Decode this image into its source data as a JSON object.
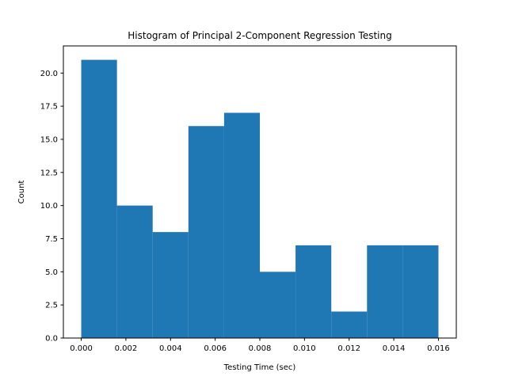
{
  "chart_data": {
    "type": "bar",
    "title": "Histogram of Principal 2-Component Regression Testing",
    "xlabel": "Testing Time (sec)",
    "ylabel": "Count",
    "bin_edges": [
      0.0,
      0.0016,
      0.0032,
      0.0048,
      0.0064,
      0.008,
      0.0096,
      0.0112,
      0.0128,
      0.0144,
      0.016
    ],
    "values": [
      21,
      10,
      8,
      16,
      17,
      5,
      7,
      2,
      7,
      7
    ],
    "xlim": [
      -0.0008,
      0.0168
    ],
    "ylim": [
      0,
      22.05
    ],
    "xticks": [
      0.0,
      0.002,
      0.004,
      0.006,
      0.008,
      0.01,
      0.012,
      0.014,
      0.016
    ],
    "xtick_labels": [
      "0.000",
      "0.002",
      "0.004",
      "0.006",
      "0.008",
      "0.010",
      "0.012",
      "0.014",
      "0.016"
    ],
    "yticks": [
      0,
      2.5,
      5,
      7.5,
      10,
      12.5,
      15,
      17.5,
      20
    ],
    "ytick_labels": [
      "0.0",
      "2.5",
      "5.0",
      "7.5",
      "10.0",
      "12.5",
      "15.0",
      "17.5",
      "20.0"
    ],
    "grid": false,
    "bar_color": "#1f77b4"
  }
}
